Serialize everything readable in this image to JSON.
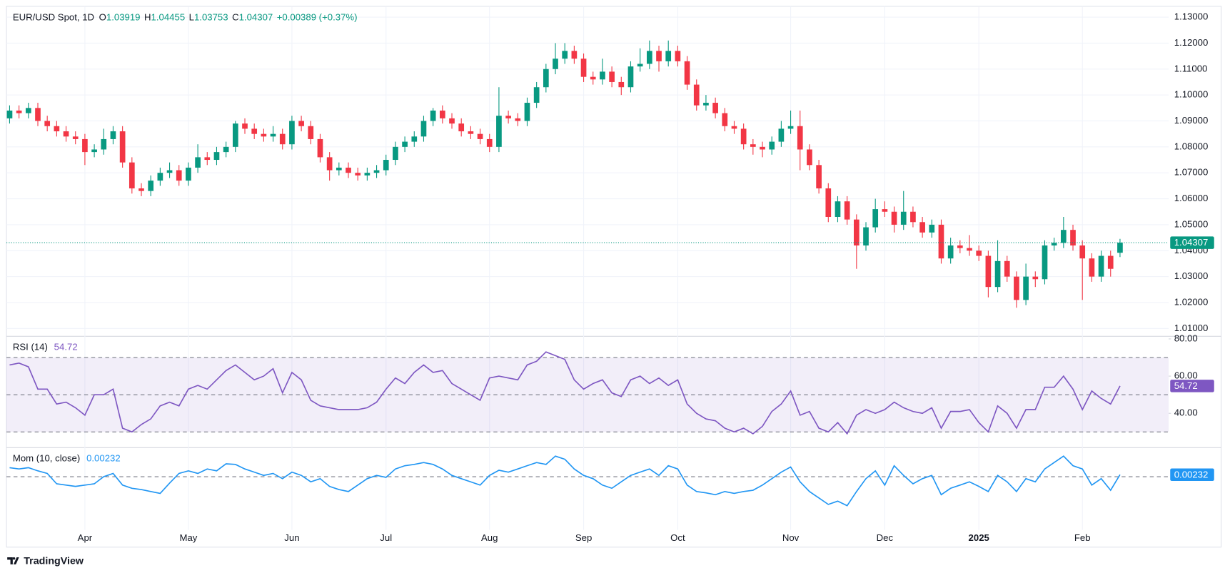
{
  "chart_data": [
    {
      "type": "candlestick",
      "title": "EUR/USD Spot, 1D",
      "ohlc_labels": [
        "O",
        "H",
        "L",
        "C"
      ],
      "change_label": "+0.00389 (+0.37%)",
      "up_color": "#089981",
      "down_color": "#f23645",
      "categories": [
        null,
        null,
        null,
        null,
        null,
        null,
        null,
        null,
        "Apr",
        null,
        null,
        null,
        null,
        null,
        null,
        null,
        null,
        null,
        null,
        "May",
        null,
        null,
        null,
        null,
        null,
        null,
        null,
        null,
        null,
        null,
        "Jun",
        null,
        null,
        null,
        null,
        null,
        null,
        null,
        null,
        null,
        "Jul",
        null,
        null,
        null,
        null,
        null,
        null,
        null,
        null,
        null,
        null,
        "Aug",
        null,
        null,
        null,
        null,
        null,
        null,
        null,
        null,
        null,
        "Sep",
        null,
        null,
        null,
        null,
        null,
        null,
        null,
        null,
        null,
        "Oct",
        null,
        null,
        null,
        null,
        null,
        null,
        null,
        null,
        null,
        null,
        null,
        "Nov",
        null,
        null,
        null,
        null,
        null,
        null,
        null,
        null,
        null,
        "Dec",
        null,
        null,
        null,
        null,
        null,
        null,
        null,
        null,
        null,
        "2025",
        null,
        null,
        null,
        null,
        null,
        null,
        null,
        null,
        null,
        null,
        "Feb",
        null,
        null,
        null,
        null
      ],
      "ohlc": [
        [
          1.091,
          1.096,
          1.089,
          1.094
        ],
        [
          1.094,
          1.096,
          1.091,
          1.093
        ],
        [
          1.093,
          1.097,
          1.091,
          1.095
        ],
        [
          1.095,
          1.097,
          1.088,
          1.09
        ],
        [
          1.09,
          1.092,
          1.086,
          1.088
        ],
        [
          1.088,
          1.09,
          1.084,
          1.086
        ],
        [
          1.086,
          1.088,
          1.082,
          1.084
        ],
        [
          1.084,
          1.086,
          1.081,
          1.083
        ],
        [
          1.083,
          1.085,
          1.073,
          1.078
        ],
        [
          1.078,
          1.081,
          1.076,
          1.079
        ],
        [
          1.079,
          1.087,
          1.077,
          1.083
        ],
        [
          1.083,
          1.088,
          1.081,
          1.086
        ],
        [
          1.086,
          1.088,
          1.072,
          1.074
        ],
        [
          1.074,
          1.076,
          1.062,
          1.064
        ],
        [
          1.064,
          1.066,
          1.061,
          1.063
        ],
        [
          1.063,
          1.069,
          1.061,
          1.067
        ],
        [
          1.067,
          1.072,
          1.065,
          1.07
        ],
        [
          1.07,
          1.074,
          1.068,
          1.071
        ],
        [
          1.071,
          1.073,
          1.065,
          1.067
        ],
        [
          1.067,
          1.074,
          1.065,
          1.072
        ],
        [
          1.072,
          1.081,
          1.07,
          1.076
        ],
        [
          1.076,
          1.078,
          1.073,
          1.075
        ],
        [
          1.075,
          1.08,
          1.073,
          1.078
        ],
        [
          1.078,
          1.082,
          1.076,
          1.08
        ],
        [
          1.08,
          1.09,
          1.078,
          1.089
        ],
        [
          1.089,
          1.091,
          1.085,
          1.087
        ],
        [
          1.087,
          1.089,
          1.083,
          1.085
        ],
        [
          1.085,
          1.087,
          1.082,
          1.084
        ],
        [
          1.084,
          1.088,
          1.082,
          1.085
        ],
        [
          1.085,
          1.087,
          1.079,
          1.081
        ],
        [
          1.081,
          1.092,
          1.079,
          1.09
        ],
        [
          1.09,
          1.092,
          1.086,
          1.088
        ],
        [
          1.088,
          1.09,
          1.081,
          1.083
        ],
        [
          1.083,
          1.085,
          1.074,
          1.076
        ],
        [
          1.076,
          1.078,
          1.067,
          1.071
        ],
        [
          1.071,
          1.074,
          1.069,
          1.072
        ],
        [
          1.072,
          1.074,
          1.068,
          1.07
        ],
        [
          1.07,
          1.072,
          1.067,
          1.069
        ],
        [
          1.069,
          1.072,
          1.067,
          1.07
        ],
        [
          1.07,
          1.073,
          1.068,
          1.071
        ],
        [
          1.071,
          1.077,
          1.069,
          1.075
        ],
        [
          1.075,
          1.082,
          1.073,
          1.08
        ],
        [
          1.08,
          1.084,
          1.078,
          1.082
        ],
        [
          1.082,
          1.086,
          1.08,
          1.084
        ],
        [
          1.084,
          1.092,
          1.082,
          1.09
        ],
        [
          1.09,
          1.095,
          1.088,
          1.094
        ],
        [
          1.094,
          1.096,
          1.089,
          1.091
        ],
        [
          1.091,
          1.093,
          1.087,
          1.089
        ],
        [
          1.089,
          1.091,
          1.084,
          1.086
        ],
        [
          1.086,
          1.088,
          1.083,
          1.085
        ],
        [
          1.085,
          1.087,
          1.081,
          1.083
        ],
        [
          1.083,
          1.085,
          1.078,
          1.08
        ],
        [
          1.08,
          1.103,
          1.078,
          1.092
        ],
        [
          1.092,
          1.094,
          1.089,
          1.091
        ],
        [
          1.091,
          1.093,
          1.088,
          1.09
        ],
        [
          1.09,
          1.099,
          1.088,
          1.097
        ],
        [
          1.097,
          1.105,
          1.095,
          1.103
        ],
        [
          1.103,
          1.112,
          1.101,
          1.11
        ],
        [
          1.11,
          1.12,
          1.108,
          1.114
        ],
        [
          1.114,
          1.12,
          1.112,
          1.117
        ],
        [
          1.117,
          1.119,
          1.112,
          1.114
        ],
        [
          1.114,
          1.116,
          1.105,
          1.107
        ],
        [
          1.107,
          1.109,
          1.104,
          1.106
        ],
        [
          1.106,
          1.114,
          1.104,
          1.109
        ],
        [
          1.109,
          1.111,
          1.103,
          1.105
        ],
        [
          1.105,
          1.107,
          1.1,
          1.103
        ],
        [
          1.103,
          1.113,
          1.101,
          1.111
        ],
        [
          1.111,
          1.118,
          1.109,
          1.112
        ],
        [
          1.112,
          1.121,
          1.11,
          1.117
        ],
        [
          1.117,
          1.119,
          1.109,
          1.113
        ],
        [
          1.113,
          1.121,
          1.111,
          1.117
        ],
        [
          1.117,
          1.119,
          1.111,
          1.113
        ],
        [
          1.113,
          1.115,
          1.102,
          1.104
        ],
        [
          1.104,
          1.106,
          1.094,
          1.096
        ],
        [
          1.096,
          1.1,
          1.094,
          1.097
        ],
        [
          1.097,
          1.099,
          1.091,
          1.093
        ],
        [
          1.093,
          1.095,
          1.086,
          1.088
        ],
        [
          1.088,
          1.09,
          1.085,
          1.087
        ],
        [
          1.087,
          1.089,
          1.079,
          1.081
        ],
        [
          1.081,
          1.083,
          1.077,
          1.08
        ],
        [
          1.08,
          1.082,
          1.076,
          1.079
        ],
        [
          1.079,
          1.084,
          1.077,
          1.082
        ],
        [
          1.082,
          1.09,
          1.08,
          1.087
        ],
        [
          1.087,
          1.094,
          1.085,
          1.088
        ],
        [
          1.088,
          1.094,
          1.071,
          1.079
        ],
        [
          1.079,
          1.081,
          1.071,
          1.073
        ],
        [
          1.073,
          1.075,
          1.062,
          1.064
        ],
        [
          1.064,
          1.066,
          1.051,
          1.053
        ],
        [
          1.053,
          1.061,
          1.051,
          1.059
        ],
        [
          1.059,
          1.061,
          1.05,
          1.052
        ],
        [
          1.052,
          1.054,
          1.033,
          1.042
        ],
        [
          1.042,
          1.051,
          1.04,
          1.049
        ],
        [
          1.049,
          1.06,
          1.047,
          1.056
        ],
        [
          1.056,
          1.059,
          1.053,
          1.055
        ],
        [
          1.055,
          1.057,
          1.047,
          1.05
        ],
        [
          1.05,
          1.063,
          1.048,
          1.055
        ],
        [
          1.055,
          1.057,
          1.049,
          1.051
        ],
        [
          1.051,
          1.053,
          1.045,
          1.047
        ],
        [
          1.047,
          1.052,
          1.045,
          1.05
        ],
        [
          1.05,
          1.052,
          1.035,
          1.037
        ],
        [
          1.037,
          1.045,
          1.035,
          1.042
        ],
        [
          1.042,
          1.044,
          1.039,
          1.041
        ],
        [
          1.041,
          1.046,
          1.038,
          1.04
        ],
        [
          1.04,
          1.042,
          1.036,
          1.038
        ],
        [
          1.038,
          1.04,
          1.022,
          1.026
        ],
        [
          1.026,
          1.044,
          1.024,
          1.036
        ],
        [
          1.036,
          1.038,
          1.028,
          1.03
        ],
        [
          1.03,
          1.032,
          1.018,
          1.021
        ],
        [
          1.021,
          1.035,
          1.019,
          1.03
        ],
        [
          1.03,
          1.032,
          1.026,
          1.029
        ],
        [
          1.029,
          1.044,
          1.027,
          1.042
        ],
        [
          1.042,
          1.045,
          1.04,
          1.043
        ],
        [
          1.043,
          1.053,
          1.041,
          1.048
        ],
        [
          1.048,
          1.05,
          1.04,
          1.042
        ],
        [
          1.042,
          1.044,
          1.021,
          1.037
        ],
        [
          1.037,
          1.039,
          1.028,
          1.03
        ],
        [
          1.03,
          1.04,
          1.028,
          1.038
        ],
        [
          1.038,
          1.04,
          1.03,
          1.033
        ],
        [
          1.03919,
          1.04455,
          1.03753,
          1.04307
        ]
      ],
      "ylim": [
        1.0073,
        1.1342
      ],
      "yticks": [
        {
          "value": 1.01,
          "label": "1.01000"
        },
        {
          "value": 1.02,
          "label": "1.02000"
        },
        {
          "value": 1.03,
          "label": "1.03000"
        },
        {
          "value": 1.04,
          "label": "1.04000"
        },
        {
          "value": 1.05,
          "label": "1.05000"
        },
        {
          "value": 1.06,
          "label": "1.06000"
        },
        {
          "value": 1.07,
          "label": "1.07000"
        },
        {
          "value": 1.08,
          "label": "1.08000"
        },
        {
          "value": 1.09,
          "label": "1.09000"
        },
        {
          "value": 1.1,
          "label": "1.10000"
        },
        {
          "value": 1.11,
          "label": "1.11000"
        },
        {
          "value": 1.12,
          "label": "1.12000"
        },
        {
          "value": 1.13,
          "label": "1.13000"
        }
      ],
      "grid": true
    },
    {
      "type": "line",
      "band": true,
      "levels": [
        30,
        50,
        70
      ],
      "series": [
        {
          "name": "RSI (14)",
          "color": "#7e57c2",
          "values": [
            66,
            67,
            65,
            53,
            53,
            45,
            46,
            43,
            39,
            50,
            50,
            53,
            32,
            30,
            34,
            37,
            44,
            46,
            44,
            53,
            55,
            53,
            58,
            63,
            66,
            62,
            58,
            60,
            64,
            51,
            62,
            58,
            47,
            44,
            43,
            42,
            42,
            42,
            43,
            46,
            53,
            59,
            56,
            62,
            66,
            62,
            63,
            56,
            53,
            50,
            47,
            59,
            60,
            59,
            58,
            66,
            68,
            73,
            71,
            69,
            58,
            53,
            56,
            58,
            51,
            49,
            58,
            60,
            56,
            59,
            55,
            58,
            45,
            40,
            37,
            36,
            32,
            30,
            32,
            29,
            33,
            41,
            45,
            52,
            39,
            41,
            32,
            30,
            35,
            29,
            39,
            42,
            40,
            42,
            46,
            43,
            41,
            40,
            43,
            32,
            41,
            41,
            42,
            35,
            30,
            44,
            40,
            32,
            42,
            42,
            54,
            54,
            60,
            53,
            42,
            52,
            48,
            45,
            54.72
          ]
        }
      ],
      "ylim": [
        22,
        81
      ],
      "yticks": [
        {
          "value": 40,
          "label": "40.00"
        },
        {
          "value": 60,
          "label": "60.00"
        },
        {
          "value": 80,
          "label": "80.00"
        }
      ]
    },
    {
      "type": "line",
      "band": false,
      "levels": [
        0
      ],
      "series": [
        {
          "name": "Mom (10, close)",
          "color": "#2196f3",
          "values": [
            0.0105,
            0.009,
            0.0105,
            0.0068,
            0.0038,
            -0.0083,
            -0.0098,
            -0.0113,
            -0.0098,
            -0.0083,
            0,
            0.0038,
            -0.0098,
            -0.0135,
            -0.015,
            -0.0173,
            -0.0195,
            -0.0075,
            0.0038,
            0.0068,
            0.0038,
            0.009,
            0.0068,
            0.015,
            0.0143,
            0.009,
            0.0053,
            0.0015,
            0.0038,
            -0.0023,
            0.0053,
            0.0015,
            -0.006,
            -0.0023,
            -0.0113,
            -0.015,
            -0.0173,
            -0.0098,
            -0.0023,
            0.0015,
            -0.0008,
            0.009,
            0.0128,
            0.0143,
            0.0165,
            0.0143,
            0.009,
            0.0015,
            -0.0023,
            -0.006,
            -0.0098,
            0.0015,
            0.0075,
            0.0053,
            0.009,
            0.0128,
            0.0165,
            0.0143,
            0.024,
            0.0203,
            0.009,
            0.0015,
            -0.0023,
            -0.0098,
            -0.0135,
            -0.006,
            0.0015,
            0.0053,
            0.009,
            0.0015,
            0.0128,
            0.009,
            -0.0098,
            -0.0173,
            -0.0188,
            -0.021,
            -0.0173,
            -0.0195,
            -0.0173,
            -0.0158,
            -0.0098,
            -0.0023,
            0.0053,
            0.0113,
            -0.006,
            -0.0173,
            -0.0248,
            -0.0323,
            -0.0285,
            -0.0338,
            -0.0173,
            -0.0023,
            0.0068,
            -0.0098,
            0.0128,
            0.0015,
            -0.0083,
            -0.0023,
            0.0015,
            -0.021,
            -0.0135,
            -0.0098,
            -0.006,
            -0.0113,
            -0.0173,
            0.0015,
            -0.006,
            -0.0173,
            -0.0023,
            -0.006,
            0.009,
            0.0165,
            0.024,
            0.0128,
            0.009,
            -0.0098,
            -0.0023,
            -0.0158,
            0.00232
          ]
        }
      ],
      "ylim": [
        -0.062,
        0.033
      ]
    }
  ],
  "footer": {
    "brand": "TradingView"
  }
}
